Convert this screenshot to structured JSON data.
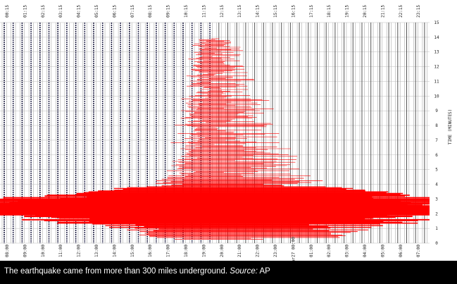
{
  "seismogram": {
    "top_labels": [
      "00:15",
      "01:15",
      "02:15",
      "03:15",
      "04:15",
      "05:15",
      "06:15",
      "07:15",
      "08:15",
      "09:15",
      "10:15",
      "11:15",
      "12:15",
      "13:15",
      "14:15",
      "15:15",
      "16:15",
      "17:15",
      "18:15",
      "19:15",
      "20:15",
      "21:15",
      "22:15",
      "23:15"
    ],
    "bottom_labels": [
      "08:00",
      "09:00",
      "10:00",
      "11:00",
      "12:00",
      "13:00",
      "14:00",
      "15:00",
      "16:00",
      "17:00",
      "18:00",
      "19:00",
      "20:00",
      "21:00",
      "22:00",
      "23:00",
      "Mar27 00:00",
      "01:00",
      "02:00",
      "03:00",
      "04:00",
      "05:00",
      "06:00",
      "07:00"
    ],
    "axis_title": "TIME (MINUTES)",
    "axis_ticks": [
      "0",
      "1",
      "2",
      "3",
      "4",
      "5",
      "6",
      "7",
      "8",
      "9",
      "10",
      "11",
      "12",
      "13",
      "14",
      "15"
    ]
  },
  "caption": {
    "text": "The earthquake came from more than 300 miles underground.",
    "source_label": "Source:",
    "source": "AP"
  }
}
